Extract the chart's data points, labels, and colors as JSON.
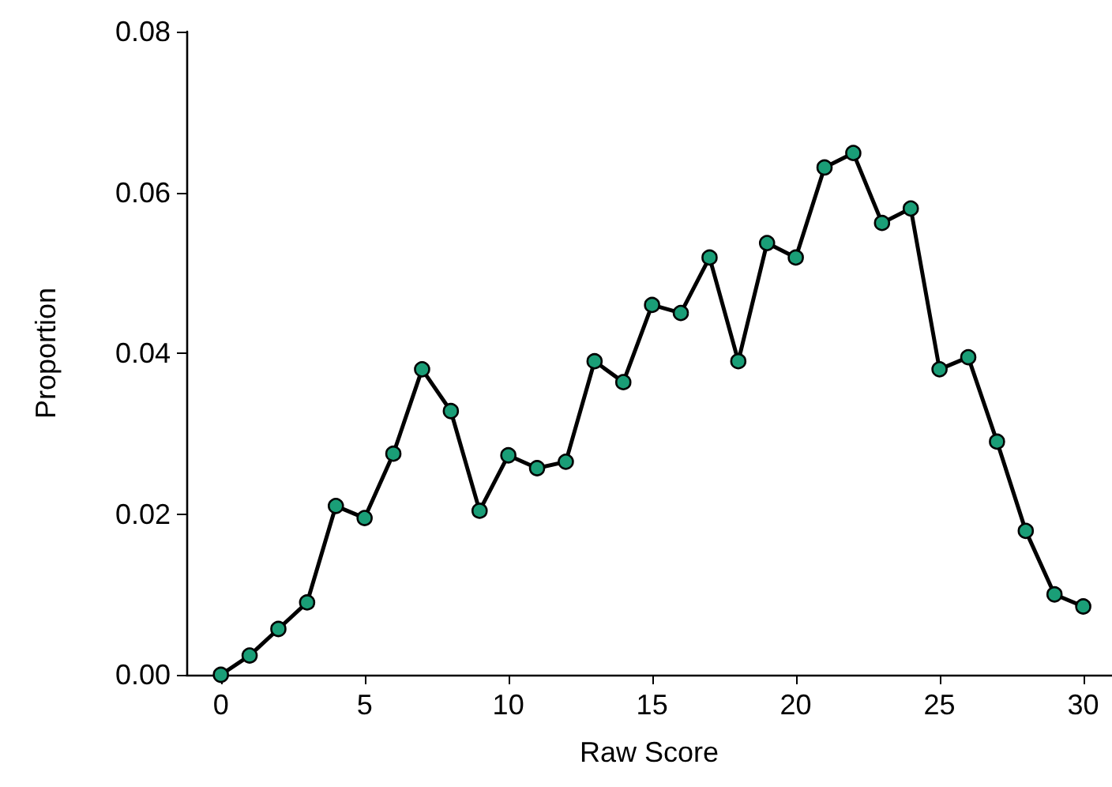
{
  "chart_data": {
    "type": "line",
    "xlabel": "Raw Score",
    "ylabel": "Proportion",
    "x": [
      0,
      1,
      2,
      3,
      4,
      5,
      6,
      7,
      8,
      9,
      10,
      11,
      12,
      13,
      14,
      15,
      16,
      17,
      18,
      19,
      20,
      21,
      22,
      23,
      24,
      25,
      26,
      27,
      28,
      29,
      30
    ],
    "series": [
      {
        "color": "#000000",
        "colors": [
          "#1a9e77",
          "#1a9e77",
          "#1a9e77",
          "#1a9e77",
          "#1a9e77",
          "#1a9e77",
          "#1a9e77",
          "#1a9e77",
          "#1a9e77",
          "#1a9e77",
          "#1a9e77",
          "#1a9e77",
          "#1a9e77",
          "#1a9e77",
          "#1a9e77",
          "#1a9e77",
          "#1a9e77",
          "#1a9e77",
          "#1a9e77",
          "#1a9e77",
          "#1a9e77",
          "#1a9e77",
          "#1a9e77",
          "#1a9e77",
          "#1a9e77",
          "#1a9e77",
          "#1a9e77",
          "#1a9e77",
          "#1a9e77",
          "#1a9e77",
          "#1a9e77"
        ],
        "values": [
          0,
          0.0024,
          0.0057,
          0.009,
          0.021,
          0.0195,
          0.0275,
          0.038,
          0.0328,
          0.0204,
          0.0273,
          0.0257,
          0.0265,
          0.039,
          0.0364,
          0.046,
          0.045,
          0.0519,
          0.039,
          0.0537,
          0.0519,
          0.0631,
          0.0649,
          0.0562,
          0.058,
          0.038,
          0.0395,
          0.029,
          0.0179,
          0.01,
          0.0085
        ]
      }
    ],
    "marker": "circle",
    "line_style": "solid",
    "xlim": [
      -1.2,
      31
    ],
    "xticks": [
      0,
      5,
      10,
      15,
      20,
      25,
      30
    ],
    "ylim": [
      0,
      0.08
    ],
    "yticks": [
      {
        "value": 0,
        "label": "0.00"
      },
      {
        "value": 0.02,
        "label": "0.02"
      },
      {
        "value": 0.04,
        "label": "0.04"
      },
      {
        "value": 0.06,
        "label": "0.06"
      },
      {
        "value": 0.08,
        "label": "0.08"
      }
    ],
    "grid": false
  }
}
